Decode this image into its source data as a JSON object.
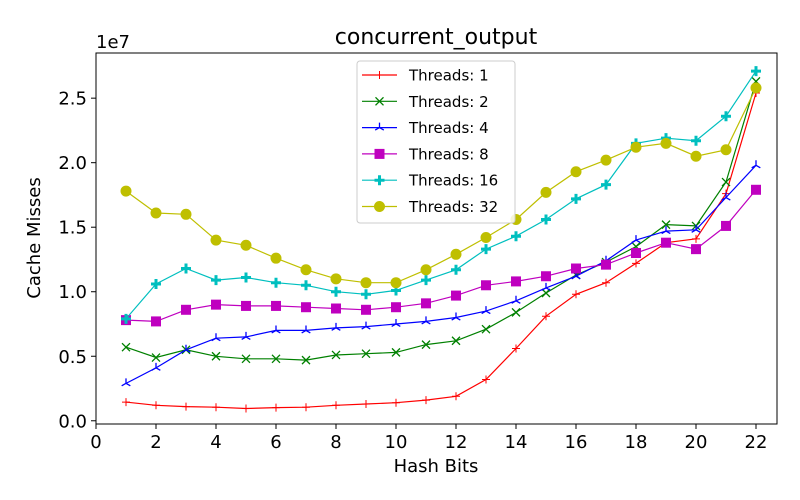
{
  "chart_data": {
    "type": "line",
    "title": "concurrent_output",
    "xlabel": "Hash Bits",
    "ylabel": "Cache Misses",
    "y_offset_label": "1e7",
    "y_scale": 10000000,
    "xlim": [
      0,
      22.7
    ],
    "ylim": [
      -250000,
      28500000
    ],
    "x_ticks": [
      0,
      2,
      4,
      6,
      8,
      10,
      12,
      14,
      16,
      18,
      20,
      22
    ],
    "y_ticks": [
      0,
      5000000,
      10000000,
      15000000,
      20000000,
      25000000
    ],
    "y_tick_labels": [
      "0.0",
      "0.5",
      "1.0",
      "1.5",
      "2.0",
      "2.5"
    ],
    "grid": false,
    "legend_position": "top-center",
    "x": [
      1,
      2,
      3,
      4,
      5,
      6,
      7,
      8,
      9,
      10,
      11,
      12,
      13,
      14,
      15,
      16,
      17,
      18,
      19,
      20,
      21,
      22
    ],
    "series": [
      {
        "name": "Threads: 1",
        "color": "#ff0000",
        "marker": "plus-thin",
        "values": [
          1450000,
          1200000,
          1100000,
          1050000,
          950000,
          1020000,
          1050000,
          1200000,
          1300000,
          1400000,
          1600000,
          1900000,
          3200000,
          5600000,
          8100000,
          9800000,
          10700000,
          12200000,
          13800000,
          14100000,
          17600000,
          25400000
        ]
      },
      {
        "name": "Threads: 2",
        "color": "#008000",
        "marker": "x",
        "values": [
          5700000,
          4900000,
          5500000,
          5000000,
          4800000,
          4800000,
          4700000,
          5100000,
          5200000,
          5300000,
          5900000,
          6200000,
          7100000,
          8400000,
          9900000,
          11300000,
          12300000,
          13500000,
          15200000,
          15100000,
          18500000,
          26300000
        ]
      },
      {
        "name": "Threads: 4",
        "color": "#0000ff",
        "marker": "tri-star",
        "values": [
          2900000,
          4100000,
          5500000,
          6400000,
          6500000,
          7000000,
          7000000,
          7200000,
          7300000,
          7500000,
          7700000,
          8000000,
          8500000,
          9300000,
          10300000,
          11200000,
          12400000,
          14000000,
          14700000,
          14800000,
          17300000,
          19800000
        ]
      },
      {
        "name": "Threads: 8",
        "color": "#bf00bf",
        "marker": "square",
        "values": [
          7800000,
          7700000,
          8600000,
          9000000,
          8900000,
          8900000,
          8800000,
          8700000,
          8600000,
          8800000,
          9100000,
          9700000,
          10500000,
          10800000,
          11200000,
          11800000,
          12100000,
          13000000,
          13800000,
          13300000,
          15100000,
          17900000
        ]
      },
      {
        "name": "Threads: 16",
        "color": "#00bfbf",
        "marker": "plus-thick",
        "values": [
          7900000,
          10600000,
          11800000,
          10900000,
          11100000,
          10700000,
          10500000,
          10000000,
          9800000,
          10100000,
          10900000,
          11700000,
          13300000,
          14300000,
          15600000,
          17200000,
          18300000,
          21500000,
          21900000,
          21700000,
          23600000,
          27100000
        ]
      },
      {
        "name": "Threads: 32",
        "color": "#bfbf00",
        "marker": "circle",
        "values": [
          17800000,
          16100000,
          16000000,
          14000000,
          13600000,
          12600000,
          11700000,
          11000000,
          10700000,
          10700000,
          11700000,
          12900000,
          14200000,
          15600000,
          17700000,
          19300000,
          20200000,
          21200000,
          21500000,
          20500000,
          21000000,
          25800000
        ]
      }
    ]
  }
}
